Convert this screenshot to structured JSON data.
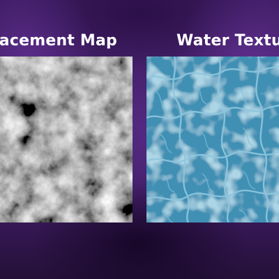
{
  "panels": {
    "displacement": {
      "title": "Displacement Map",
      "visible_title": "splacement Map",
      "colors": {
        "dark": "#2e2e2e",
        "mid": "#8a8a8a",
        "light": "#e6e6e6"
      }
    },
    "water": {
      "title": "Water Texture",
      "visible_title": "Water Texture",
      "colors": {
        "base": "#3e8eb3",
        "deep": "#2f7aa0",
        "foam": "#9fd3e8"
      }
    }
  },
  "background": {
    "color": "#3a1a5c"
  }
}
